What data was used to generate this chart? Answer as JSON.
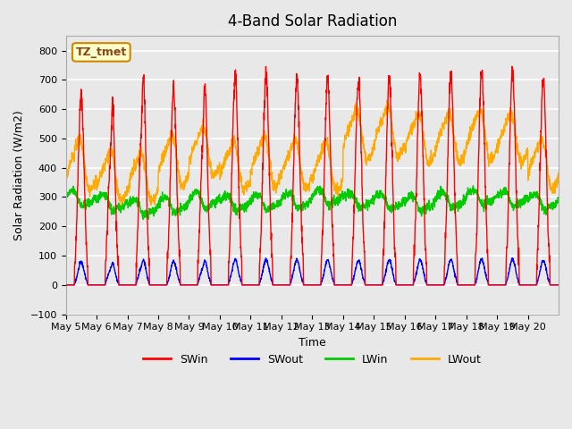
{
  "title": "4-Band Solar Radiation",
  "xlabel": "Time",
  "ylabel": "Solar Radiation (W/m2)",
  "ylim": [
    -100,
    850
  ],
  "yticks": [
    -100,
    0,
    100,
    200,
    300,
    400,
    500,
    600,
    700,
    800
  ],
  "x_labels": [
    "May 5",
    "May 6",
    "May 7",
    "May 8",
    "May 9",
    "May 10",
    "May 11",
    "May 12",
    "May 13",
    "May 14",
    "May 15",
    "May 16",
    "May 17",
    "May 18",
    "May 19",
    "May 20"
  ],
  "legend_label": "TZ_tmet",
  "series_labels": [
    "SWin",
    "SWout",
    "LWin",
    "LWout"
  ],
  "series_colors": [
    "#ff0000",
    "#0000ff",
    "#00cc00",
    "#ffaa00"
  ],
  "background_color": "#e8e8e8",
  "plot_bg_color": "#e8e8e8",
  "grid_color": "#ffffff",
  "n_days": 16,
  "points_per_day": 144
}
